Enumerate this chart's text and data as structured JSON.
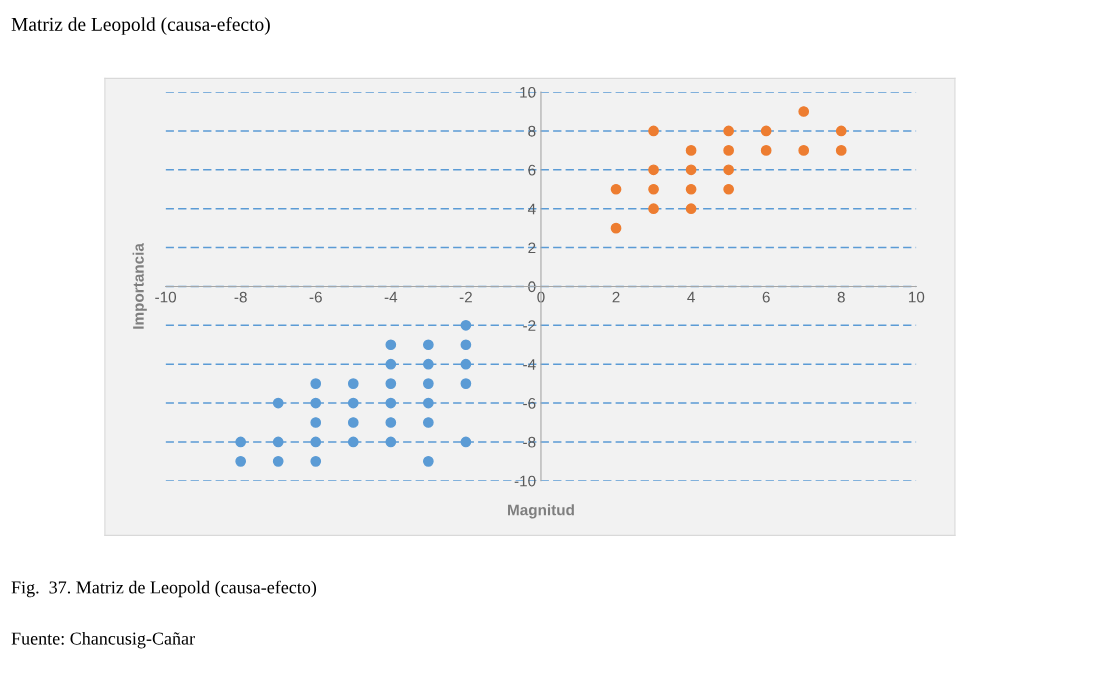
{
  "chart_data": {
    "type": "scatter",
    "title": "Matriz de Leopold (causa-efecto)",
    "xlabel": "Magnitud",
    "ylabel": "Importancia",
    "annotations": [
      "Fig.  37. Matriz de Leopold (causa-efecto)",
      "Fuente: Chancusig-Cañar"
    ],
    "xlim": [
      -10,
      10
    ],
    "ylim": [
      -10,
      10
    ],
    "xticks": [
      -10,
      -8,
      -6,
      -4,
      -2,
      0,
      2,
      4,
      6,
      8,
      10
    ],
    "yticks": [
      -10,
      -8,
      -6,
      -4,
      -2,
      0,
      2,
      4,
      6,
      8,
      10
    ],
    "grid": "y",
    "marker": "circle",
    "series": [
      {
        "color": "#ed7d31",
        "x": [
          2,
          2,
          3,
          3,
          3,
          3,
          4,
          4,
          4,
          4,
          5,
          5,
          5,
          5,
          6,
          6,
          7,
          7,
          8,
          8
        ],
        "values": [
          5,
          3,
          8,
          6,
          5,
          4,
          7,
          6,
          5,
          4,
          8,
          7,
          6,
          5,
          8,
          7,
          9,
          7,
          8,
          7
        ]
      },
      {
        "color": "#5b9bd5",
        "x": [
          -2,
          -2,
          -2,
          -2,
          -2,
          -3,
          -3,
          -3,
          -3,
          -3,
          -3,
          -4,
          -4,
          -4,
          -4,
          -4,
          -4,
          -5,
          -5,
          -5,
          -5,
          -6,
          -6,
          -6,
          -6,
          -6,
          -7,
          -7,
          -7,
          -8,
          -8
        ],
        "values": [
          -2,
          -3,
          -4,
          -5,
          -8,
          -3,
          -4,
          -5,
          -6,
          -7,
          -9,
          -3,
          -4,
          -5,
          -6,
          -7,
          -8,
          -5,
          -6,
          -7,
          -8,
          -5,
          -6,
          -7,
          -8,
          -9,
          -6,
          -8,
          -9,
          -8,
          -9
        ]
      }
    ]
  }
}
